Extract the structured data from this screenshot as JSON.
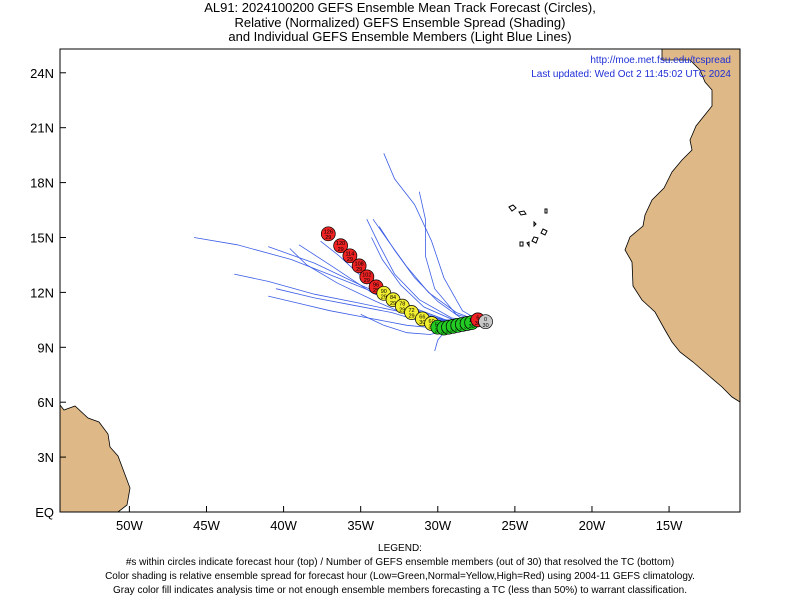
{
  "title": {
    "line1": "AL91: 2024100200 GEFS Ensemble Mean Track Forecast (Circles),",
    "line2": "Relative (Normalized) GEFS Ensemble Spread (Shading)",
    "line3": "and Individual GEFS Ensemble Members (Light Blue Lines)"
  },
  "credit": {
    "url": "http://moe.met.fsu.edu/tcspread",
    "updated": "Last updated: Wed Oct 2 11:45:02 UTC 2024"
  },
  "axes": {
    "lat_ticks": [
      {
        "value": 24,
        "label": "24N"
      },
      {
        "value": 21,
        "label": "21N"
      },
      {
        "value": 18,
        "label": "18N"
      },
      {
        "value": 15,
        "label": "15N"
      },
      {
        "value": 12,
        "label": "12N"
      },
      {
        "value": 9,
        "label": "9N"
      },
      {
        "value": 6,
        "label": "6N"
      },
      {
        "value": 3,
        "label": "3N"
      },
      {
        "value": 0,
        "label": "EQ"
      }
    ],
    "lon_ticks": [
      {
        "value": -50,
        "label": "50W"
      },
      {
        "value": -45,
        "label": "45W"
      },
      {
        "value": -40,
        "label": "40W"
      },
      {
        "value": -35,
        "label": "35W"
      },
      {
        "value": -30,
        "label": "30W"
      },
      {
        "value": -25,
        "label": "25W"
      },
      {
        "value": -20,
        "label": "20W"
      },
      {
        "value": -15,
        "label": "15W"
      }
    ],
    "lon_range": [
      -54.5,
      -10.4
    ],
    "lat_range": [
      0,
      25.3
    ]
  },
  "colors": {
    "land": "#deb887",
    "ocean": "#ffffff",
    "member_line": "#3c5ee6",
    "low_spread": "#22cc22",
    "normal_spread": "#f2ee30",
    "high_spread": "#ee2222",
    "analysis": "#c8c8c8"
  },
  "mean_track": [
    {
      "lon": -26.9,
      "lat": 10.4,
      "cat": "analysis",
      "hour": "0",
      "n": "30"
    },
    {
      "lon": -27.4,
      "lat": 10.5,
      "cat": "high",
      "hour": "6",
      "n": "30"
    },
    {
      "lon": -27.8,
      "lat": 10.35,
      "cat": "low",
      "hour": "12",
      "n": "30"
    },
    {
      "lon": -28.1,
      "lat": 10.3,
      "cat": "low",
      "hour": "18",
      "n": "30"
    },
    {
      "lon": -28.4,
      "lat": 10.25,
      "cat": "low",
      "hour": "24",
      "n": "30"
    },
    {
      "lon": -28.7,
      "lat": 10.2,
      "cat": "low",
      "hour": "30",
      "n": "30"
    },
    {
      "lon": -29.0,
      "lat": 10.15,
      "cat": "low",
      "hour": "36",
      "n": "30"
    },
    {
      "lon": -29.3,
      "lat": 10.1,
      "cat": "low",
      "hour": "42",
      "n": "30"
    },
    {
      "lon": -29.6,
      "lat": 10.05,
      "cat": "low",
      "hour": "48",
      "n": "30"
    },
    {
      "lon": -30.0,
      "lat": 10.1,
      "cat": "low",
      "hour": "54",
      "n": "30"
    },
    {
      "lon": -30.4,
      "lat": 10.3,
      "cat": "normal",
      "hour": "60",
      "n": "30"
    },
    {
      "lon": -31.0,
      "lat": 10.55,
      "cat": "normal",
      "hour": "66",
      "n": "30"
    },
    {
      "lon": -31.7,
      "lat": 10.9,
      "cat": "normal",
      "hour": "72",
      "n": "29"
    },
    {
      "lon": -32.3,
      "lat": 11.25,
      "cat": "normal",
      "hour": "78",
      "n": "29"
    },
    {
      "lon": -32.9,
      "lat": 11.6,
      "cat": "normal",
      "hour": "84",
      "n": "29"
    },
    {
      "lon": -33.5,
      "lat": 11.95,
      "cat": "normal",
      "hour": "90",
      "n": "29"
    },
    {
      "lon": -34.0,
      "lat": 12.3,
      "cat": "high",
      "hour": "96",
      "n": "29"
    },
    {
      "lon": -34.6,
      "lat": 12.85,
      "cat": "high",
      "hour": "102",
      "n": "29"
    },
    {
      "lon": -35.1,
      "lat": 13.45,
      "cat": "high",
      "hour": "108",
      "n": "29"
    },
    {
      "lon": -35.7,
      "lat": 14.0,
      "cat": "high",
      "hour": "114",
      "n": "29"
    },
    {
      "lon": -36.3,
      "lat": 14.55,
      "cat": "high",
      "hour": "120",
      "n": "29"
    },
    {
      "lon": -37.1,
      "lat": 15.2,
      "cat": "high",
      "hour": "126",
      "n": "29"
    }
  ],
  "members": [
    [
      [
        -27.2,
        10.4
      ],
      [
        -29.0,
        10.3
      ],
      [
        -31.0,
        10.9
      ],
      [
        -33.5,
        11.8
      ],
      [
        -36.5,
        12.8
      ],
      [
        -39.5,
        13.8
      ],
      [
        -43.0,
        14.6
      ],
      [
        -45.8,
        15.0
      ]
    ],
    [
      [
        -27.2,
        10.4
      ],
      [
        -29.5,
        10.5
      ],
      [
        -32.0,
        11.3
      ],
      [
        -35.0,
        12.4
      ],
      [
        -38.0,
        13.6
      ],
      [
        -41.0,
        14.5
      ]
    ],
    [
      [
        -27.2,
        10.4
      ],
      [
        -29.0,
        10.1
      ],
      [
        -31.0,
        10.4
      ],
      [
        -33.0,
        10.9
      ],
      [
        -35.5,
        11.3
      ],
      [
        -38.0,
        11.7
      ],
      [
        -40.5,
        12.2
      ]
    ],
    [
      [
        -27.2,
        10.4
      ],
      [
        -28.5,
        10.6
      ],
      [
        -30.0,
        11.5
      ],
      [
        -31.5,
        12.8
      ],
      [
        -32.8,
        14.3
      ],
      [
        -33.8,
        15.6
      ]
    ],
    [
      [
        -27.2,
        10.4
      ],
      [
        -28.8,
        10.8
      ],
      [
        -30.2,
        12.2
      ],
      [
        -30.8,
        14.0
      ],
      [
        -30.8,
        16.0
      ],
      [
        -31.2,
        17.5
      ]
    ],
    [
      [
        -27.2,
        10.4
      ],
      [
        -28.4,
        11.0
      ],
      [
        -29.6,
        12.8
      ],
      [
        -30.4,
        14.8
      ],
      [
        -31.5,
        16.8
      ],
      [
        -32.8,
        18.2
      ],
      [
        -33.5,
        19.6
      ]
    ],
    [
      [
        -27.2,
        10.4
      ],
      [
        -28.8,
        10.9
      ],
      [
        -30.6,
        12.0
      ],
      [
        -32.0,
        13.4
      ],
      [
        -33.2,
        14.8
      ],
      [
        -34.2,
        16.0
      ]
    ],
    [
      [
        -27.2,
        10.4
      ],
      [
        -29.2,
        10.2
      ],
      [
        -31.5,
        10.6
      ],
      [
        -34.0,
        11.5
      ],
      [
        -36.5,
        12.5
      ],
      [
        -38.5,
        13.5
      ],
      [
        -39.6,
        14.4
      ]
    ],
    [
      [
        -27.2,
        10.4
      ],
      [
        -29.5,
        10.0
      ],
      [
        -32.0,
        10.2
      ],
      [
        -34.5,
        10.6
      ],
      [
        -37.0,
        11.0
      ],
      [
        -39.0,
        11.4
      ],
      [
        -41.0,
        11.8
      ]
    ],
    [
      [
        -27.2,
        10.4
      ],
      [
        -29.3,
        10.4
      ],
      [
        -31.8,
        11.0
      ],
      [
        -34.3,
        12.0
      ],
      [
        -36.8,
        13.4
      ],
      [
        -39.0,
        14.6
      ]
    ],
    [
      [
        -27.2,
        10.4
      ],
      [
        -29.0,
        10.0
      ],
      [
        -30.5,
        9.7
      ],
      [
        -32.0,
        9.8
      ],
      [
        -33.5,
        10.2
      ],
      [
        -35.0,
        10.8
      ]
    ],
    [
      [
        -27.2,
        10.4
      ],
      [
        -28.6,
        10.3
      ],
      [
        -29.4,
        10.0
      ],
      [
        -30.0,
        9.4
      ],
      [
        -30.2,
        8.8
      ]
    ],
    [
      [
        -27.2,
        10.4
      ],
      [
        -28.9,
        10.4
      ],
      [
        -30.6,
        10.7
      ],
      [
        -32.6,
        11.5
      ],
      [
        -34.6,
        12.6
      ],
      [
        -36.4,
        14.0
      ],
      [
        -37.6,
        14.8
      ]
    ],
    [
      [
        -27.2,
        10.4
      ],
      [
        -29.1,
        10.6
      ],
      [
        -31.2,
        11.6
      ],
      [
        -32.8,
        13.0
      ],
      [
        -33.8,
        14.6
      ],
      [
        -34.6,
        16.0
      ]
    ],
    [
      [
        -27.2,
        10.4
      ],
      [
        -29.4,
        10.4
      ],
      [
        -32.2,
        10.9
      ],
      [
        -35.0,
        11.4
      ],
      [
        -38.0,
        11.9
      ],
      [
        -41.0,
        12.6
      ],
      [
        -43.2,
        13.0
      ]
    ],
    [
      [
        -27.2,
        10.4
      ],
      [
        -29.0,
        10.5
      ],
      [
        -30.9,
        11.2
      ],
      [
        -32.4,
        12.4
      ],
      [
        -33.6,
        13.8
      ],
      [
        -34.3,
        15.0
      ]
    ]
  ],
  "legend": {
    "heading": "LEGEND:",
    "line1": "#s within circles indicate forecast hour (top) / Number of GEFS ensemble members (out of 30) that resolved the TC (bottom)",
    "line2": "Color shading is relative ensemble spread for forecast hour (Low=Green,Normal=Yellow,High=Red) using 2004-11 GEFS climatology.",
    "line3": "Gray color fill indicates analysis time or not enough ensemble members forecasting a TC (less than 50%) to warrant classification."
  }
}
